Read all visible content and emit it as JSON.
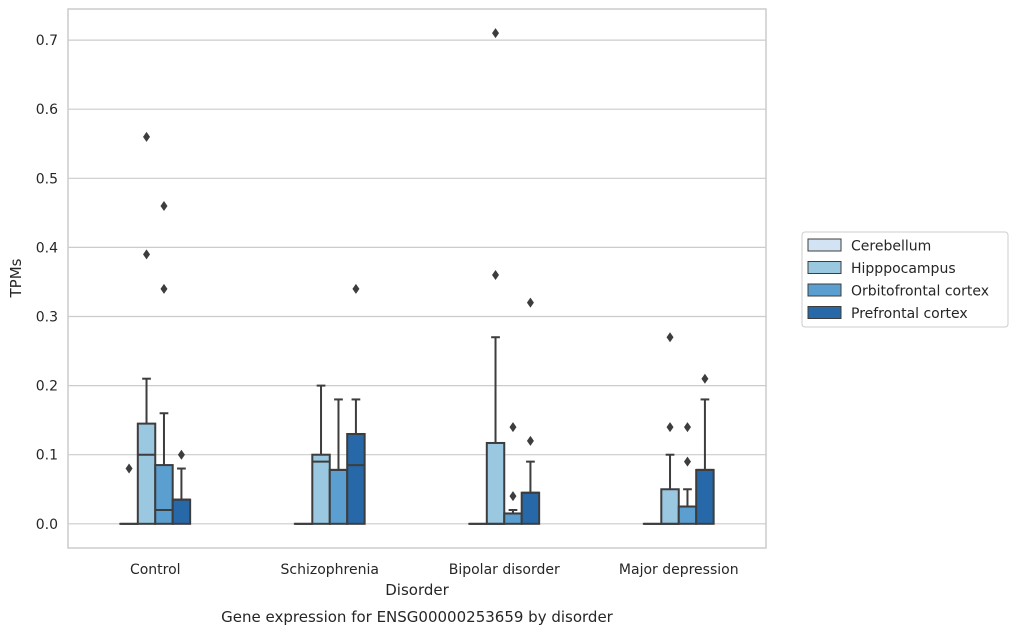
{
  "chart_data": {
    "type": "box",
    "caption": "Gene expression for ENSG00000253659 by disorder",
    "xlabel": "Disorder",
    "ylabel": "TPMs",
    "ylim": [
      -0.035,
      0.745
    ],
    "yticks": [
      0.0,
      0.1,
      0.2,
      0.3,
      0.4,
      0.5,
      0.6,
      0.7
    ],
    "ytick_labels": [
      "0.0",
      "0.1",
      "0.2",
      "0.3",
      "0.4",
      "0.5",
      "0.6",
      "0.7"
    ],
    "grid": true,
    "legend_placement": "right",
    "categories": [
      "Control",
      "Schizophrenia",
      "Bipolar disorder",
      "Major depression"
    ],
    "series": [
      {
        "name": "Cerebellum",
        "color": "#d2e3f3",
        "boxes": [
          {
            "q1": 0,
            "median": 0,
            "q3": 0,
            "whislo": 0,
            "whishi": 0,
            "fliers": [
              0.08
            ]
          },
          {
            "q1": 0,
            "median": 0,
            "q3": 0,
            "whislo": 0,
            "whishi": 0,
            "fliers": []
          },
          {
            "q1": 0,
            "median": 0,
            "q3": 0,
            "whislo": 0,
            "whishi": 0,
            "fliers": []
          },
          {
            "q1": 0,
            "median": 0,
            "q3": 0,
            "whislo": 0,
            "whishi": 0,
            "fliers": []
          }
        ]
      },
      {
        "name": "Hipppocampus",
        "color": "#9ac8e0",
        "boxes": [
          {
            "q1": 0,
            "median": 0.1,
            "q3": 0.145,
            "whislo": 0,
            "whishi": 0.21,
            "fliers": [
              0.56,
              0.39
            ]
          },
          {
            "q1": 0,
            "median": 0.09,
            "q3": 0.1,
            "whislo": 0,
            "whishi": 0.2,
            "fliers": []
          },
          {
            "q1": 0,
            "median": 0,
            "q3": 0.117,
            "whislo": 0,
            "whishi": 0.27,
            "fliers": [
              0.71,
              0.36
            ]
          },
          {
            "q1": 0,
            "median": 0,
            "q3": 0.05,
            "whislo": 0,
            "whishi": 0.1,
            "fliers": [
              0.27,
              0.14
            ]
          }
        ]
      },
      {
        "name": "Orbitofrontal cortex",
        "color": "#5a9fcf",
        "boxes": [
          {
            "q1": 0,
            "median": 0.02,
            "q3": 0.085,
            "whislo": 0,
            "whishi": 0.16,
            "fliers": [
              0.46,
              0.34
            ]
          },
          {
            "q1": 0,
            "median": 0.078,
            "q3": 0.078,
            "whislo": 0,
            "whishi": 0.18,
            "fliers": []
          },
          {
            "q1": 0,
            "median": 0.015,
            "q3": 0.015,
            "whislo": 0,
            "whishi": 0.02,
            "fliers": [
              0.14,
              0.04
            ]
          },
          {
            "q1": 0,
            "median": 0.025,
            "q3": 0.025,
            "whislo": 0,
            "whishi": 0.05,
            "fliers": [
              0.14,
              0.09
            ]
          }
        ]
      },
      {
        "name": "Prefrontal cortex",
        "color": "#2668a8",
        "boxes": [
          {
            "q1": 0,
            "median": 0.035,
            "q3": 0.035,
            "whislo": 0,
            "whishi": 0.08,
            "fliers": [
              0.1
            ]
          },
          {
            "q1": 0,
            "median": 0.085,
            "q3": 0.13,
            "whislo": 0,
            "whishi": 0.18,
            "fliers": [
              0.34
            ]
          },
          {
            "q1": 0,
            "median": 0.045,
            "q3": 0.045,
            "whislo": 0,
            "whishi": 0.09,
            "fliers": [
              0.32,
              0.12
            ]
          },
          {
            "q1": 0,
            "median": 0.078,
            "q3": 0.078,
            "whislo": 0,
            "whishi": 0.18,
            "fliers": [
              0.21
            ]
          }
        ]
      }
    ]
  }
}
